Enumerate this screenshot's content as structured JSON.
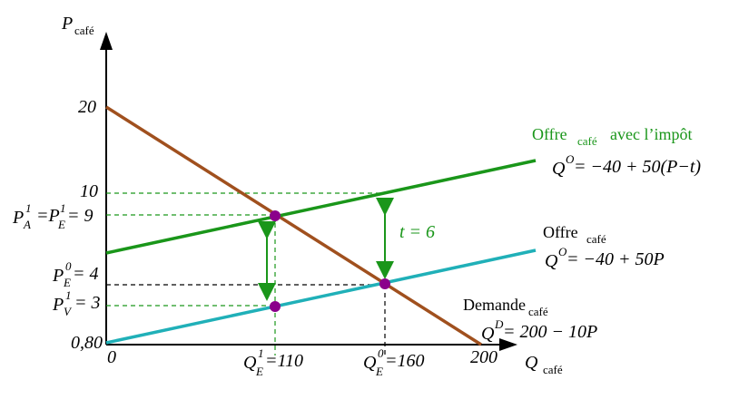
{
  "axes": {
    "y": {
      "main": "P",
      "sub": "café"
    },
    "x": {
      "main": "Q",
      "sub": "café"
    },
    "origin": "0"
  },
  "y_labels": {
    "p20": "20",
    "p10": "10",
    "p080": "0,80"
  },
  "price_tax": {
    "a": "P",
    "a_sup": "1",
    "a_sub": "A",
    "mid": "=P",
    "b_sup": "1",
    "b_sub": "E",
    "end": "= 9"
  },
  "price_eq0": {
    "a": "P",
    "a_sup": "0",
    "a_sub": "E",
    "end": "= 4"
  },
  "price_v": {
    "a": "P",
    "a_sup": "1",
    "a_sub": "V",
    "end": "= 3"
  },
  "q_eq1": {
    "a": "Q",
    "a_sup": "1",
    "a_sub": "E",
    "end": "=110"
  },
  "q_eq0": {
    "a": "Q",
    "a_sup": "0",
    "a_sub": "E",
    "end": "=160"
  },
  "x_200": "200",
  "supply_tax": {
    "name": "Offre",
    "sub": "café",
    "rest": "avec l’impôt",
    "eq_q": "Q",
    "eq_sup": "O",
    "eq": "= −40 + 50(P−t)"
  },
  "tax": "t = 6",
  "supply": {
    "name": "Offre",
    "sub": "café",
    "eq_q": "Q",
    "eq_sup": "O",
    "eq": "= −40 + 50P"
  },
  "demand": {
    "name": "Demande",
    "sub": "café",
    "eq_q": "Q",
    "eq_sup": "D",
    "eq": "= 200 − 10P"
  }
}
